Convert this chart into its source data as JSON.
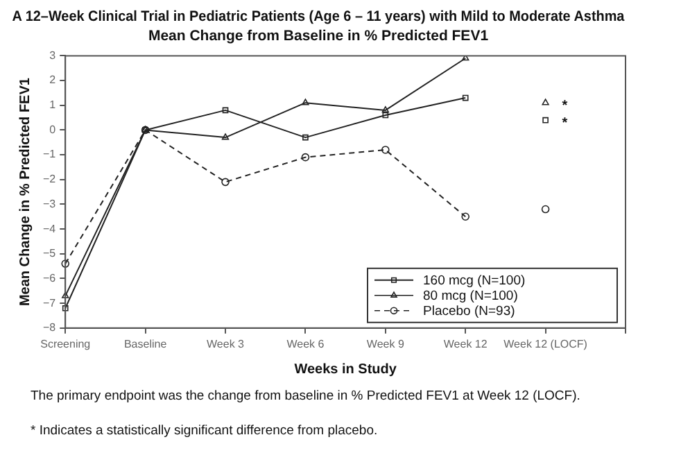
{
  "chart_data": {
    "type": "line",
    "title": "A 12–Week Clinical Trial in Pediatric Patients (Age 6 – 11 years) with Mild to Moderate Asthma",
    "subtitle": "Mean Change from Baseline in % Predicted FEV1",
    "xlabel": "Weeks in Study",
    "ylabel": "Mean Change in % Predicted FEV1",
    "categories": [
      "Screening",
      "Baseline",
      "Week 3",
      "Week 6",
      "Week 9",
      "Week 12",
      "Week 12 (LOCF)",
      null
    ],
    "series": [
      {
        "name": "160 mcg (N=100)",
        "color": "#222222",
        "marker": "square",
        "line_style": "solid",
        "values": [
          -7.2,
          0,
          0.8,
          -0.3,
          0.6,
          1.3,
          null,
          null
        ]
      },
      {
        "name": "80 mcg (N=100)",
        "color": "#222222",
        "marker": "triangle",
        "line_style": "solid",
        "values": [
          -6.7,
          0,
          -0.3,
          1.1,
          0.8,
          2.9,
          null,
          null
        ]
      },
      {
        "name": "Placebo (N=93)",
        "color": "#222222",
        "marker": "circle",
        "line_style": "dashed",
        "values": [
          -5.4,
          0,
          -2.1,
          -1.1,
          -0.8,
          -3.5,
          null,
          null
        ]
      },
      {
        "type": "scatter",
        "color": "#222222",
        "marker": "square",
        "x": [
          "Week 12 (LOCF)"
        ],
        "values": [
          0.4
        ]
      },
      {
        "type": "scatter",
        "color": "#222222",
        "marker": "triangle",
        "x": [
          "Week 12 (LOCF)"
        ],
        "values": [
          1.1
        ]
      },
      {
        "type": "scatter",
        "color": "#222222",
        "marker": "circle",
        "x": [
          "Week 12 (LOCF)"
        ],
        "values": [
          -3.2
        ]
      }
    ],
    "ylim": [
      -8,
      3
    ],
    "yticks": [
      -8,
      -7,
      -6,
      -5,
      -4,
      -3,
      -2,
      -1,
      0,
      1,
      2,
      3
    ],
    "grid": false,
    "legend": "bottom right",
    "annotations": [
      {
        "text": "*",
        "x": "Week 12 (LOCF)",
        "y": 1.1
      },
      {
        "text": "*",
        "x": "Week 12 (LOCF)",
        "y": 0.4
      },
      "The primary endpoint was the change from baseline in % Predicted FEV1 at Week 12 (LOCF).",
      "* Indicates a statistically significant difference from placebo."
    ]
  }
}
